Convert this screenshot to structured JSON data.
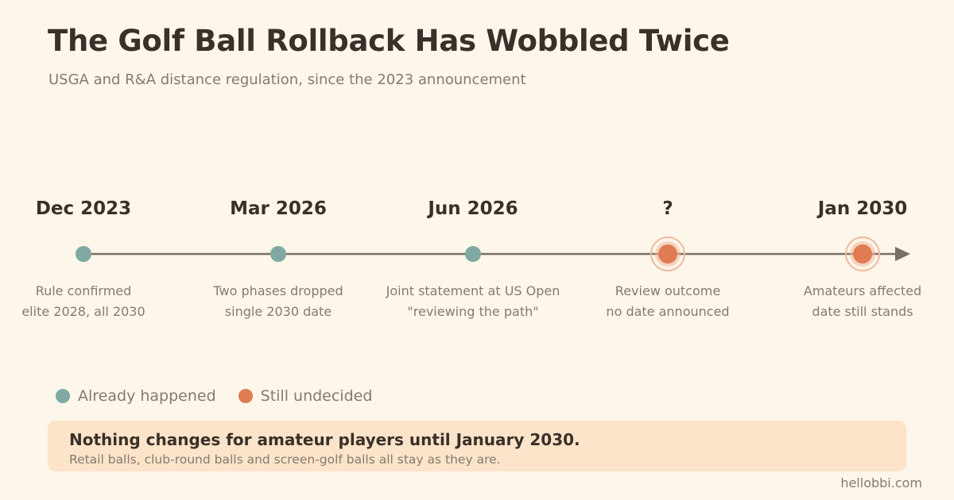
{
  "header": {
    "title": "The Golf Ball Rollback Has Wobbled Twice",
    "subtitle": "USGA and R&A distance regulation, since the 2023 announcement"
  },
  "colors": {
    "background": "#fdf6ea",
    "line": "#7a6f66",
    "happened": "#7fa9a2",
    "undecided": "#e07b52",
    "undecided_ring": "#f2b89c",
    "callout": "#fbe4c9"
  },
  "timeline": {
    "events": [
      {
        "date": "Dec 2023",
        "line1": "Rule confirmed",
        "line2": "elite 2028, all 2030",
        "status": "happened"
      },
      {
        "date": "Mar 2026",
        "line1": "Two phases dropped",
        "line2": "single 2030 date",
        "status": "happened"
      },
      {
        "date": "Jun 2026",
        "line1": "Joint statement at US Open",
        "line2": "\"reviewing the path\"",
        "status": "happened"
      },
      {
        "date": "?",
        "line1": "Review outcome",
        "line2": "no date announced",
        "status": "undecided"
      },
      {
        "date": "Jan 2030",
        "line1": "Amateurs affected",
        "line2": "date still stands",
        "status": "undecided"
      }
    ]
  },
  "legend": {
    "happened": "Already happened",
    "undecided": "Still undecided"
  },
  "callout": {
    "headline": "Nothing changes for amateur players until January 2030.",
    "body": "Retail balls, club-round balls and screen-golf balls all stay as they are."
  },
  "footer": {
    "source": "hellobbi.com"
  }
}
